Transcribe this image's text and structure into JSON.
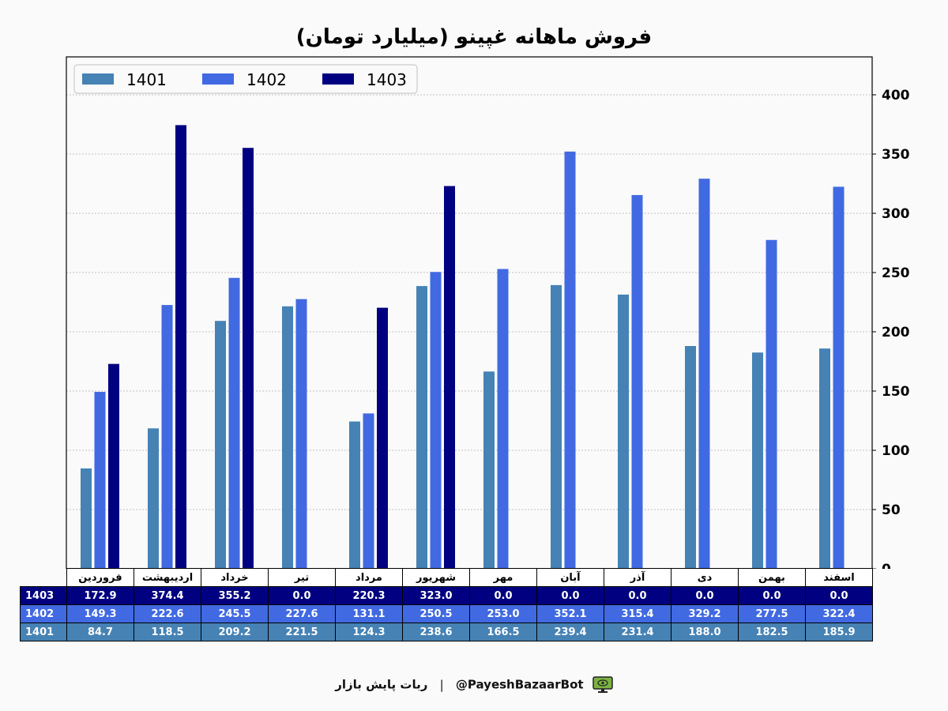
{
  "chart_data": {
    "type": "bar",
    "title": "فروش ماهانه غپینو (میلیارد تومان)",
    "categories": [
      "فروردین",
      "اردیبهشت",
      "خرداد",
      "تیر",
      "مرداد",
      "شهریور",
      "مهر",
      "آبان",
      "آذر",
      "دی",
      "بهمن",
      "اسفند"
    ],
    "series": [
      {
        "name": "1401",
        "color": "#4682b4",
        "values": [
          84.7,
          118.5,
          209.2,
          221.5,
          124.3,
          238.6,
          166.5,
          239.4,
          231.4,
          188.0,
          182.5,
          185.9
        ]
      },
      {
        "name": "1402",
        "color": "#4169e1",
        "values": [
          149.3,
          222.6,
          245.5,
          227.6,
          131.1,
          250.5,
          253.0,
          352.1,
          315.4,
          329.2,
          277.5,
          322.4
        ]
      },
      {
        "name": "1403",
        "color": "#000080",
        "values": [
          172.9,
          374.4,
          355.2,
          0.0,
          220.3,
          323.0,
          0.0,
          0.0,
          0.0,
          0.0,
          0.0,
          0.0
        ]
      }
    ],
    "ylim": [
      0,
      432
    ],
    "yticks": [
      0,
      50,
      100,
      150,
      200,
      250,
      300,
      350,
      400
    ],
    "grid": true,
    "legend_position": "top-left",
    "table_rows": [
      {
        "label": "1403",
        "values": [
          "172.9",
          "374.4",
          "355.2",
          "0.0",
          "220.3",
          "323.0",
          "0.0",
          "0.0",
          "0.0",
          "0.0",
          "0.0",
          "0.0"
        ]
      },
      {
        "label": "1402",
        "values": [
          "149.3",
          "222.6",
          "245.5",
          "227.6",
          "131.1",
          "250.5",
          "253.0",
          "352.1",
          "315.4",
          "329.2",
          "277.5",
          "322.4"
        ]
      },
      {
        "label": "1401",
        "values": [
          "84.7",
          "118.5",
          "209.2",
          "221.5",
          "124.3",
          "238.6",
          "166.5",
          "239.4",
          "231.4",
          "188.0",
          "182.5",
          "185.9"
        ]
      }
    ]
  },
  "footer": {
    "bot_name": "ربات پایش بازار",
    "handle": "@PayeshBazaarBot",
    "separator": "|",
    "icon": "monitor-eye-icon"
  }
}
